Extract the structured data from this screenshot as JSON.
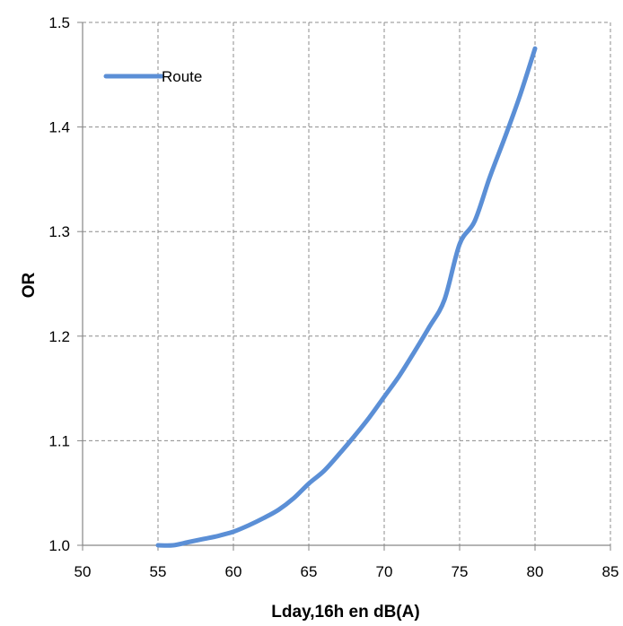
{
  "chart_data": {
    "type": "line",
    "title": "",
    "xlabel": "Lday,16h en dB(A)",
    "ylabel": "OR",
    "xlim": [
      50,
      85
    ],
    "ylim": [
      1.0,
      1.5
    ],
    "x_ticks": [
      50,
      55,
      60,
      65,
      70,
      75,
      80,
      85
    ],
    "x_tick_labels": [
      "50",
      "55",
      "60",
      "65",
      "70",
      "75",
      "80",
      "85"
    ],
    "y_ticks": [
      1.0,
      1.1,
      1.2,
      1.3,
      1.4,
      1.5
    ],
    "y_tick_labels": [
      "1.0",
      "1.1",
      "1.2",
      "1.3",
      "1.4",
      "1.5"
    ],
    "grid": true,
    "grid_style": "dashed",
    "legend_position": "top-left",
    "series": [
      {
        "name": "Route",
        "color": "#5b8fd6",
        "x": [
          55,
          56,
          57,
          58,
          59,
          60,
          61,
          62,
          63,
          64,
          65,
          66,
          67,
          68,
          69,
          70,
          71,
          72,
          73,
          74,
          75,
          76,
          77,
          78,
          79,
          80
        ],
        "y": [
          1.0,
          1.0,
          1.003,
          1.006,
          1.009,
          1.013,
          1.019,
          1.026,
          1.034,
          1.045,
          1.059,
          1.071,
          1.087,
          1.104,
          1.122,
          1.142,
          1.162,
          1.185,
          1.209,
          1.235,
          1.288,
          1.31,
          1.352,
          1.39,
          1.43,
          1.475
        ]
      }
    ]
  }
}
